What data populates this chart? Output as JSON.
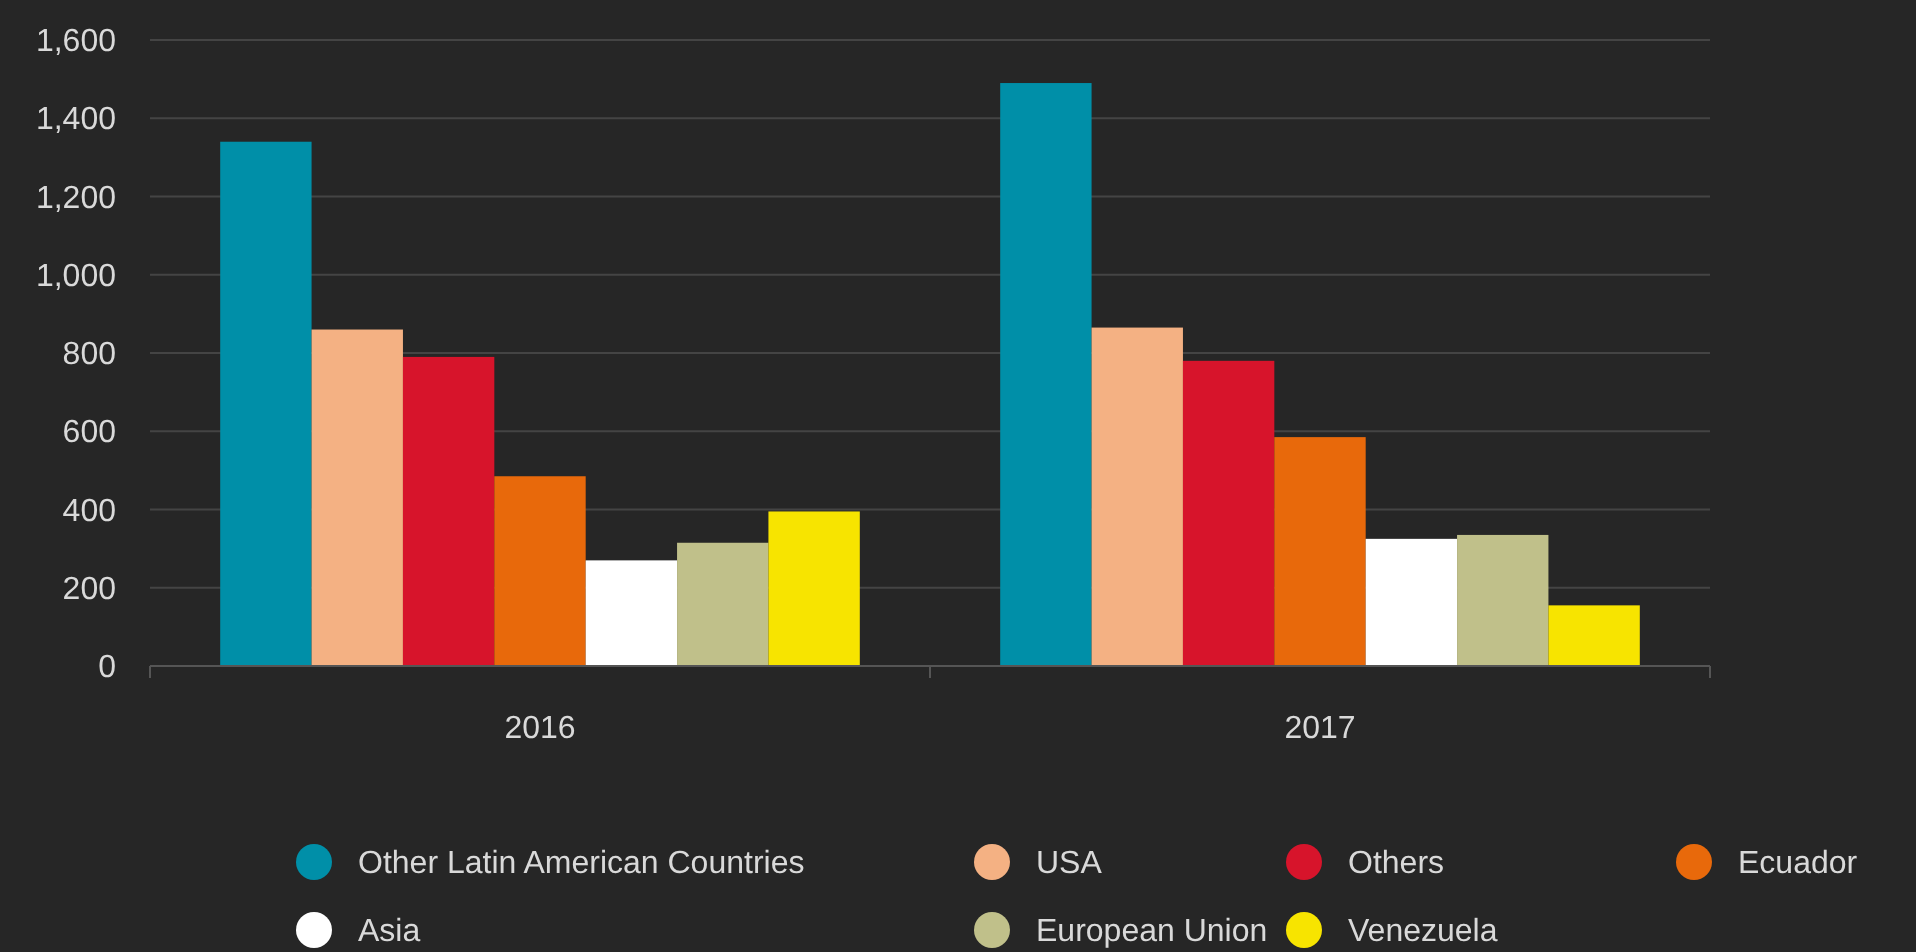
{
  "chart_data": {
    "type": "bar",
    "categories": [
      "2016",
      "2017"
    ],
    "series": [
      {
        "name": "Other Latin American Countries",
        "color": "#008fa8",
        "values": [
          1340,
          1490
        ]
      },
      {
        "name": "USA",
        "color": "#f4b183",
        "values": [
          860,
          865
        ]
      },
      {
        "name": "Others",
        "color": "#d7142b",
        "values": [
          790,
          780
        ]
      },
      {
        "name": "Ecuador",
        "color": "#e8690b",
        "values": [
          485,
          585
        ]
      },
      {
        "name": "Asia",
        "color": "#ffffff",
        "values": [
          270,
          325
        ]
      },
      {
        "name": "European Union",
        "color": "#c0c08a",
        "values": [
          315,
          335
        ]
      },
      {
        "name": "Venezuela",
        "color": "#f7e400",
        "values": [
          395,
          155
        ]
      }
    ],
    "ylim": [
      0,
      1600
    ],
    "yticks": [
      {
        "value": 0,
        "label": "0"
      },
      {
        "value": 200,
        "label": "200"
      },
      {
        "value": 400,
        "label": "400"
      },
      {
        "value": 600,
        "label": "600"
      },
      {
        "value": 800,
        "label": "800"
      },
      {
        "value": 1000,
        "label": "1,000"
      },
      {
        "value": 1200,
        "label": "1,200"
      },
      {
        "value": 1400,
        "label": "1,400"
      },
      {
        "value": 1600,
        "label": "1,600"
      }
    ],
    "grid": "y",
    "legend": "bottom"
  }
}
